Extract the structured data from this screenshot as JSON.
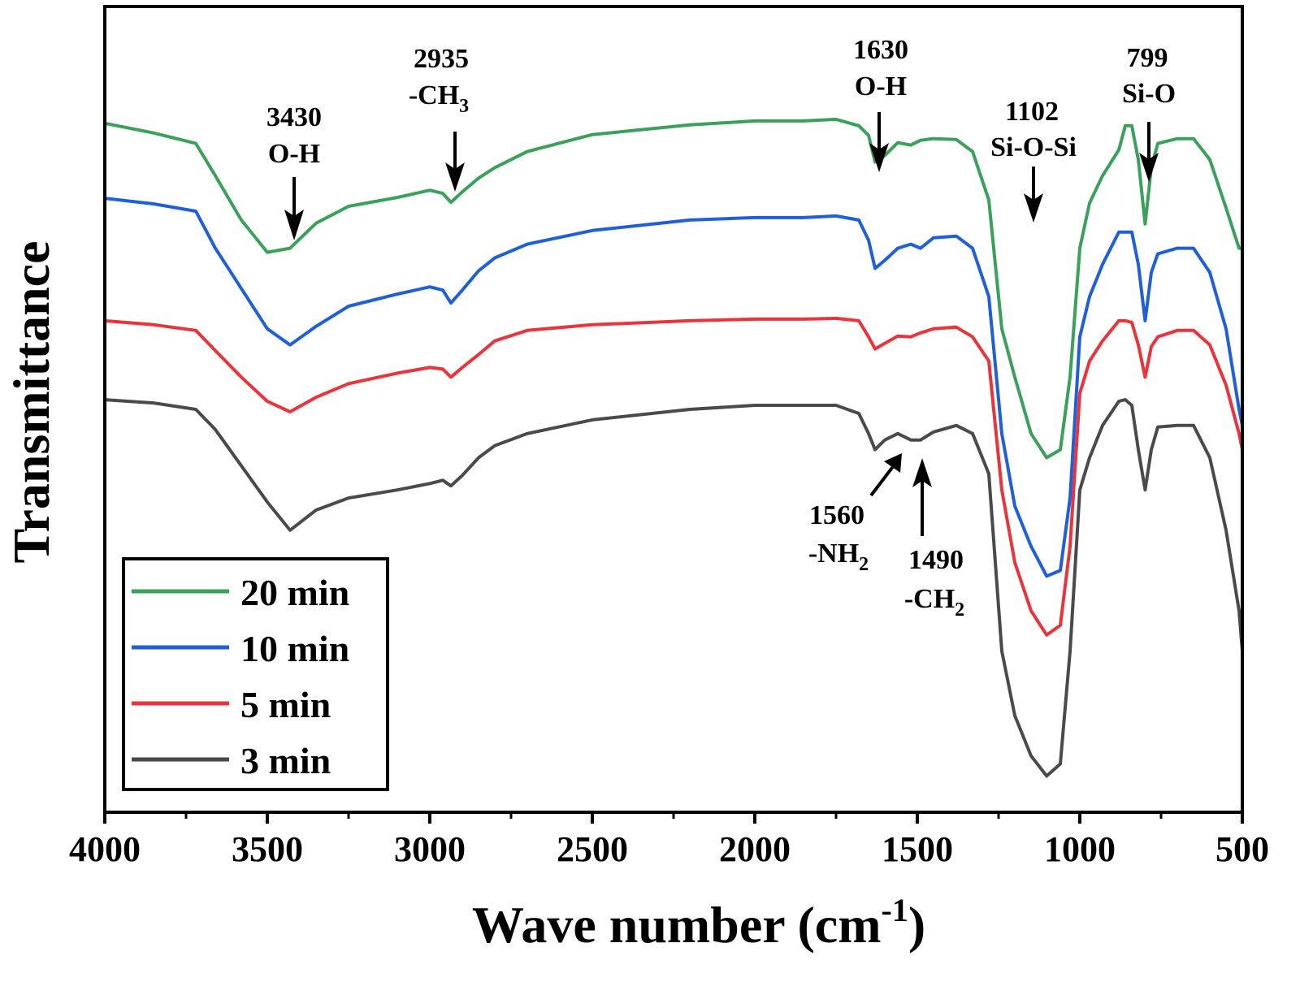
{
  "chart_data": {
    "type": "line",
    "xlabel": "Wave number",
    "xlabel_unit_base": "cm",
    "xlabel_unit_exp": "-1",
    "ylabel": "Transmittance",
    "xlim": [
      4000,
      500
    ],
    "x_reversed": true,
    "x_ticks": [
      "4000",
      "3500",
      "3000",
      "2500",
      "2000",
      "1500",
      "1000",
      "500"
    ],
    "x_tick_values": [
      4000,
      3500,
      3000,
      2500,
      2000,
      1500,
      1000,
      500
    ],
    "y_ticks_shown": false,
    "grid": false,
    "legend_position": "bottom-left",
    "series": [
      {
        "name": "20 min",
        "color": "#3aa05a",
        "points": [
          [
            4000,
            0.855
          ],
          [
            3850,
            0.843
          ],
          [
            3720,
            0.83
          ],
          [
            3660,
            0.79
          ],
          [
            3580,
            0.735
          ],
          [
            3500,
            0.695
          ],
          [
            3430,
            0.7
          ],
          [
            3350,
            0.731
          ],
          [
            3250,
            0.752
          ],
          [
            3100,
            0.763
          ],
          [
            3000,
            0.772
          ],
          [
            2960,
            0.768
          ],
          [
            2935,
            0.757
          ],
          [
            2900,
            0.77
          ],
          [
            2850,
            0.787
          ],
          [
            2800,
            0.8
          ],
          [
            2700,
            0.82
          ],
          [
            2500,
            0.841
          ],
          [
            2200,
            0.853
          ],
          [
            2000,
            0.858
          ],
          [
            1850,
            0.858
          ],
          [
            1750,
            0.86
          ],
          [
            1680,
            0.852
          ],
          [
            1650,
            0.84
          ],
          [
            1630,
            0.807
          ],
          [
            1600,
            0.815
          ],
          [
            1560,
            0.831
          ],
          [
            1520,
            0.828
          ],
          [
            1490,
            0.834
          ],
          [
            1450,
            0.836
          ],
          [
            1380,
            0.835
          ],
          [
            1330,
            0.82
          ],
          [
            1280,
            0.76
          ],
          [
            1240,
            0.6
          ],
          [
            1200,
            0.54
          ],
          [
            1150,
            0.47
          ],
          [
            1102,
            0.44
          ],
          [
            1060,
            0.45
          ],
          [
            1030,
            0.54
          ],
          [
            1000,
            0.7
          ],
          [
            970,
            0.756
          ],
          [
            930,
            0.79
          ],
          [
            880,
            0.822
          ],
          [
            860,
            0.852
          ],
          [
            840,
            0.852
          ],
          [
            820,
            0.81
          ],
          [
            799,
            0.73
          ],
          [
            780,
            0.8
          ],
          [
            760,
            0.83
          ],
          [
            700,
            0.836
          ],
          [
            650,
            0.836
          ],
          [
            600,
            0.81
          ],
          [
            550,
            0.75
          ],
          [
            510,
            0.7
          ],
          [
            500,
            0.7
          ]
        ]
      },
      {
        "name": "10 min",
        "color": "#1f5fd8",
        "points": [
          [
            4000,
            0.762
          ],
          [
            3850,
            0.755
          ],
          [
            3720,
            0.746
          ],
          [
            3660,
            0.7
          ],
          [
            3580,
            0.65
          ],
          [
            3500,
            0.6
          ],
          [
            3430,
            0.58
          ],
          [
            3350,
            0.603
          ],
          [
            3250,
            0.628
          ],
          [
            3100,
            0.643
          ],
          [
            3000,
            0.652
          ],
          [
            2960,
            0.648
          ],
          [
            2935,
            0.632
          ],
          [
            2900,
            0.648
          ],
          [
            2850,
            0.672
          ],
          [
            2800,
            0.688
          ],
          [
            2700,
            0.705
          ],
          [
            2500,
            0.722
          ],
          [
            2200,
            0.735
          ],
          [
            2000,
            0.738
          ],
          [
            1850,
            0.738
          ],
          [
            1750,
            0.74
          ],
          [
            1680,
            0.735
          ],
          [
            1650,
            0.71
          ],
          [
            1630,
            0.675
          ],
          [
            1600,
            0.685
          ],
          [
            1560,
            0.7
          ],
          [
            1520,
            0.705
          ],
          [
            1490,
            0.7
          ],
          [
            1450,
            0.713
          ],
          [
            1380,
            0.715
          ],
          [
            1330,
            0.7
          ],
          [
            1280,
            0.64
          ],
          [
            1240,
            0.47
          ],
          [
            1200,
            0.38
          ],
          [
            1150,
            0.33
          ],
          [
            1102,
            0.293
          ],
          [
            1060,
            0.3
          ],
          [
            1030,
            0.39
          ],
          [
            1000,
            0.59
          ],
          [
            970,
            0.64
          ],
          [
            930,
            0.68
          ],
          [
            880,
            0.72
          ],
          [
            860,
            0.72
          ],
          [
            840,
            0.72
          ],
          [
            820,
            0.68
          ],
          [
            799,
            0.61
          ],
          [
            780,
            0.67
          ],
          [
            760,
            0.693
          ],
          [
            700,
            0.7
          ],
          [
            650,
            0.7
          ],
          [
            600,
            0.67
          ],
          [
            550,
            0.6
          ],
          [
            510,
            0.5
          ],
          [
            500,
            0.48
          ]
        ]
      },
      {
        "name": "5 min",
        "color": "#e8343a",
        "points": [
          [
            4000,
            0.61
          ],
          [
            3850,
            0.605
          ],
          [
            3720,
            0.598
          ],
          [
            3660,
            0.573
          ],
          [
            3580,
            0.54
          ],
          [
            3500,
            0.51
          ],
          [
            3430,
            0.497
          ],
          [
            3350,
            0.515
          ],
          [
            3250,
            0.532
          ],
          [
            3100,
            0.545
          ],
          [
            3000,
            0.552
          ],
          [
            2960,
            0.55
          ],
          [
            2935,
            0.54
          ],
          [
            2900,
            0.552
          ],
          [
            2850,
            0.568
          ],
          [
            2800,
            0.585
          ],
          [
            2700,
            0.598
          ],
          [
            2500,
            0.605
          ],
          [
            2200,
            0.61
          ],
          [
            2000,
            0.612
          ],
          [
            1850,
            0.612
          ],
          [
            1750,
            0.613
          ],
          [
            1680,
            0.61
          ],
          [
            1650,
            0.59
          ],
          [
            1630,
            0.575
          ],
          [
            1600,
            0.582
          ],
          [
            1560,
            0.591
          ],
          [
            1520,
            0.59
          ],
          [
            1490,
            0.595
          ],
          [
            1450,
            0.6
          ],
          [
            1380,
            0.602
          ],
          [
            1330,
            0.59
          ],
          [
            1280,
            0.56
          ],
          [
            1240,
            0.4
          ],
          [
            1200,
            0.31
          ],
          [
            1150,
            0.25
          ],
          [
            1102,
            0.22
          ],
          [
            1060,
            0.232
          ],
          [
            1030,
            0.33
          ],
          [
            1000,
            0.52
          ],
          [
            970,
            0.56
          ],
          [
            930,
            0.585
          ],
          [
            880,
            0.61
          ],
          [
            860,
            0.61
          ],
          [
            840,
            0.608
          ],
          [
            820,
            0.58
          ],
          [
            799,
            0.54
          ],
          [
            780,
            0.578
          ],
          [
            760,
            0.59
          ],
          [
            700,
            0.598
          ],
          [
            650,
            0.598
          ],
          [
            600,
            0.58
          ],
          [
            550,
            0.53
          ],
          [
            510,
            0.47
          ],
          [
            500,
            0.45
          ]
        ]
      },
      {
        "name": "3 min",
        "color": "#4a4a4a",
        "points": [
          [
            4000,
            0.512
          ],
          [
            3850,
            0.508
          ],
          [
            3720,
            0.5
          ],
          [
            3660,
            0.475
          ],
          [
            3580,
            0.43
          ],
          [
            3500,
            0.385
          ],
          [
            3430,
            0.35
          ],
          [
            3350,
            0.375
          ],
          [
            3250,
            0.39
          ],
          [
            3100,
            0.4
          ],
          [
            3000,
            0.408
          ],
          [
            2960,
            0.412
          ],
          [
            2935,
            0.405
          ],
          [
            2900,
            0.418
          ],
          [
            2850,
            0.44
          ],
          [
            2800,
            0.455
          ],
          [
            2700,
            0.47
          ],
          [
            2500,
            0.487
          ],
          [
            2200,
            0.5
          ],
          [
            2000,
            0.505
          ],
          [
            1850,
            0.505
          ],
          [
            1750,
            0.505
          ],
          [
            1680,
            0.495
          ],
          [
            1650,
            0.47
          ],
          [
            1630,
            0.45
          ],
          [
            1600,
            0.462
          ],
          [
            1560,
            0.47
          ],
          [
            1520,
            0.462
          ],
          [
            1490,
            0.462
          ],
          [
            1450,
            0.472
          ],
          [
            1380,
            0.48
          ],
          [
            1330,
            0.47
          ],
          [
            1280,
            0.42
          ],
          [
            1240,
            0.2
          ],
          [
            1200,
            0.12
          ],
          [
            1150,
            0.07
          ],
          [
            1102,
            0.045
          ],
          [
            1060,
            0.06
          ],
          [
            1030,
            0.2
          ],
          [
            1000,
            0.4
          ],
          [
            970,
            0.44
          ],
          [
            930,
            0.48
          ],
          [
            880,
            0.51
          ],
          [
            860,
            0.512
          ],
          [
            840,
            0.505
          ],
          [
            820,
            0.45
          ],
          [
            799,
            0.4
          ],
          [
            780,
            0.45
          ],
          [
            760,
            0.478
          ],
          [
            700,
            0.48
          ],
          [
            650,
            0.48
          ],
          [
            600,
            0.44
          ],
          [
            550,
            0.35
          ],
          [
            510,
            0.25
          ],
          [
            500,
            0.2
          ]
        ]
      }
    ],
    "annotations": [
      {
        "line1": "3430",
        "line2": "O-H",
        "sub": ""
      },
      {
        "line1": "2935",
        "line2": "-CH",
        "sub": "3"
      },
      {
        "line1": "1630",
        "line2": "O-H",
        "sub": ""
      },
      {
        "line1": "1102",
        "line2": "Si-O-Si",
        "sub": ""
      },
      {
        "line1": "799",
        "line2": "Si-O",
        "sub": ""
      },
      {
        "line1": "1560",
        "line2": "-NH",
        "sub": "2"
      },
      {
        "line1": "1490",
        "line2": "-CH",
        "sub": "2"
      }
    ]
  }
}
